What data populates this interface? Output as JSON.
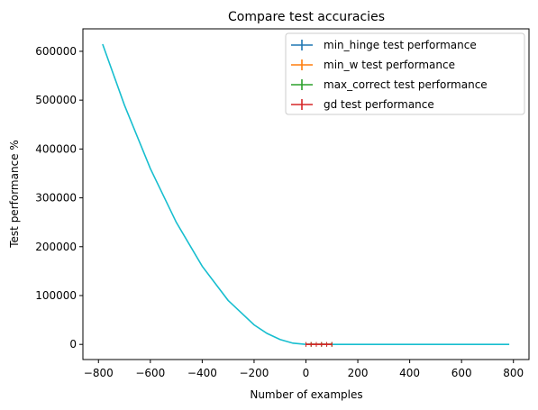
{
  "chart_data": {
    "type": "line",
    "title": "Compare test accuracies",
    "xlabel": "Number of examples",
    "ylabel": "Test performance %",
    "xlim": [
      -860,
      860
    ],
    "ylim": [
      -31000,
      646000
    ],
    "xticks": [
      -800,
      -600,
      -400,
      -200,
      0,
      200,
      400,
      600,
      800
    ],
    "yticks": [
      0,
      100000,
      200000,
      300000,
      400000,
      500000,
      600000
    ],
    "grid": false,
    "legend_position": "top-right",
    "curve": {
      "color": "#17becf",
      "x": [
        -784,
        -700,
        -600,
        -500,
        -400,
        -300,
        -200,
        -150,
        -100,
        -50,
        0,
        100,
        200,
        300,
        400,
        500,
        600,
        700,
        784
      ],
      "y": [
        614656,
        490000,
        360000,
        250000,
        160000,
        90000,
        40000,
        22500,
        10000,
        2500,
        0,
        0,
        0,
        0,
        0,
        0,
        0,
        0,
        0
      ]
    },
    "series": [
      {
        "name": "min_hinge test performance",
        "color": "#1f77b4",
        "x": [
          0,
          20,
          40,
          60,
          80,
          100
        ],
        "y": [
          0,
          0,
          0,
          0,
          0,
          0
        ]
      },
      {
        "name": "min_w test performance",
        "color": "#ff7f0e",
        "x": [
          0,
          20,
          40,
          60,
          80,
          100
        ],
        "y": [
          0,
          0,
          0,
          0,
          0,
          0
        ]
      },
      {
        "name": "max_correct test performance",
        "color": "#2ca02c",
        "x": [
          0,
          20,
          40,
          60,
          80,
          100
        ],
        "y": [
          0,
          0,
          0,
          0,
          0,
          0
        ]
      },
      {
        "name": "gd test performance",
        "color": "#d62728",
        "x": [
          0,
          20,
          40,
          60,
          80,
          100
        ],
        "y": [
          0,
          0,
          0,
          0,
          0,
          0
        ]
      }
    ]
  }
}
